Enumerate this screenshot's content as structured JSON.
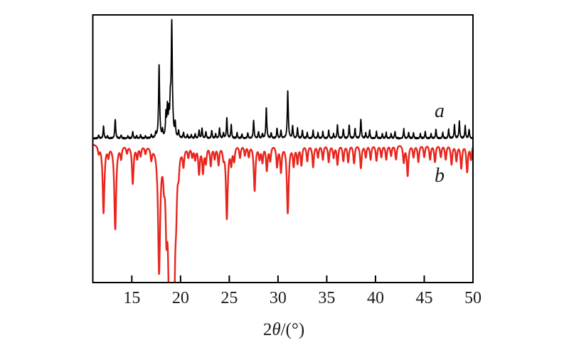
{
  "chart_data": {
    "type": "line",
    "title": "",
    "xlabel": "2θ/(°)",
    "xlabel_parts": {
      "prefix": "2",
      "symbol": "θ",
      "suffix": "/(°)"
    },
    "xlim": [
      11,
      50
    ],
    "x_ticks": [
      15,
      20,
      25,
      30,
      35,
      40,
      45,
      50
    ],
    "grid": false,
    "background": "#ffffff",
    "frame_color": "#000000",
    "legend_position": "inside-right",
    "series": [
      {
        "name": "experimental-pattern",
        "label": "a",
        "color": "#000000",
        "direction": "up",
        "baseline_frac": 0.464,
        "max_amplitude_frac": 0.427,
        "peak_width_deg": 0.05,
        "line_width": 1.8,
        "noise": 0.9,
        "peaks": [
          [
            11.6,
            3
          ],
          [
            12.1,
            11
          ],
          [
            12.5,
            2
          ],
          [
            13.3,
            17
          ],
          [
            13.9,
            3
          ],
          [
            14.6,
            2
          ],
          [
            15.1,
            6
          ],
          [
            15.5,
            2
          ],
          [
            15.9,
            3
          ],
          [
            16.4,
            2
          ],
          [
            17.0,
            3
          ],
          [
            17.45,
            4
          ],
          [
            17.8,
            64
          ],
          [
            18.15,
            6
          ],
          [
            18.5,
            20
          ],
          [
            18.65,
            24
          ],
          [
            18.8,
            19
          ],
          [
            18.95,
            25
          ],
          [
            19.1,
            100
          ],
          [
            19.45,
            12
          ],
          [
            19.8,
            6
          ],
          [
            20.3,
            5
          ],
          [
            20.7,
            3
          ],
          [
            21.1,
            3
          ],
          [
            21.5,
            4
          ],
          [
            21.9,
            7
          ],
          [
            22.2,
            9
          ],
          [
            22.6,
            6
          ],
          [
            23.2,
            7
          ],
          [
            23.6,
            4
          ],
          [
            24.0,
            9
          ],
          [
            24.4,
            5
          ],
          [
            24.75,
            18
          ],
          [
            25.2,
            12
          ],
          [
            25.8,
            5
          ],
          [
            26.3,
            4
          ],
          [
            26.9,
            5
          ],
          [
            27.5,
            16
          ],
          [
            28.0,
            6
          ],
          [
            28.4,
            4
          ],
          [
            28.8,
            27
          ],
          [
            29.3,
            5
          ],
          [
            29.9,
            9
          ],
          [
            30.3,
            7
          ],
          [
            31.0,
            42
          ],
          [
            31.5,
            11
          ],
          [
            32.0,
            9
          ],
          [
            32.5,
            7
          ],
          [
            33.0,
            5
          ],
          [
            33.6,
            7
          ],
          [
            34.1,
            5
          ],
          [
            34.6,
            6
          ],
          [
            35.2,
            7
          ],
          [
            35.7,
            4
          ],
          [
            36.1,
            12
          ],
          [
            36.7,
            8
          ],
          [
            37.3,
            12
          ],
          [
            37.9,
            9
          ],
          [
            38.5,
            17
          ],
          [
            39.0,
            5
          ],
          [
            39.4,
            7
          ],
          [
            40.1,
            6
          ],
          [
            40.7,
            4
          ],
          [
            41.1,
            5
          ],
          [
            41.6,
            4
          ],
          [
            42.0,
            6
          ],
          [
            42.9,
            8
          ],
          [
            43.4,
            5
          ],
          [
            43.9,
            5
          ],
          [
            44.6,
            4
          ],
          [
            45.1,
            6
          ],
          [
            45.7,
            4
          ],
          [
            46.2,
            8
          ],
          [
            46.9,
            5
          ],
          [
            47.5,
            8
          ],
          [
            48.1,
            12
          ],
          [
            48.6,
            15
          ],
          [
            49.2,
            11
          ],
          [
            49.6,
            8
          ]
        ]
      },
      {
        "name": "simulated-pattern",
        "label": "b",
        "color": "#e8251d",
        "direction": "down",
        "baseline_frac": 0.48,
        "max_amplitude_frac": 0.464,
        "peak_width_deg": 0.09,
        "line_width": 2.4,
        "noise": 0,
        "peaks": [
          [
            11.6,
            6
          ],
          [
            12.1,
            55
          ],
          [
            12.6,
            8
          ],
          [
            13.3,
            68
          ],
          [
            13.9,
            10
          ],
          [
            14.5,
            6
          ],
          [
            15.1,
            31
          ],
          [
            15.55,
            10
          ],
          [
            15.9,
            8
          ],
          [
            16.4,
            6
          ],
          [
            17.0,
            10
          ],
          [
            17.8,
            100
          ],
          [
            18.3,
            18
          ],
          [
            18.55,
            55
          ],
          [
            18.8,
            80
          ],
          [
            19.0,
            75
          ],
          [
            19.2,
            89
          ],
          [
            19.35,
            85
          ],
          [
            19.55,
            30
          ],
          [
            19.8,
            13
          ],
          [
            20.3,
            14
          ],
          [
            20.8,
            8
          ],
          [
            21.2,
            8
          ],
          [
            21.5,
            10
          ],
          [
            21.9,
            22
          ],
          [
            22.3,
            21
          ],
          [
            22.6,
            13
          ],
          [
            23.1,
            16
          ],
          [
            23.5,
            10
          ],
          [
            23.9,
            15
          ],
          [
            24.4,
            8
          ],
          [
            24.75,
            59
          ],
          [
            25.2,
            14
          ],
          [
            25.5,
            12
          ],
          [
            26.1,
            10
          ],
          [
            26.6,
            8
          ],
          [
            27.0,
            9
          ],
          [
            27.6,
            37
          ],
          [
            28.1,
            10
          ],
          [
            28.4,
            13
          ],
          [
            28.85,
            20
          ],
          [
            29.2,
            12
          ],
          [
            29.9,
            17
          ],
          [
            30.3,
            21
          ],
          [
            31.0,
            55
          ],
          [
            31.6,
            16
          ],
          [
            32.0,
            14
          ],
          [
            32.4,
            16
          ],
          [
            33.0,
            13
          ],
          [
            33.6,
            18
          ],
          [
            34.1,
            10
          ],
          [
            34.6,
            12
          ],
          [
            35.2,
            14
          ],
          [
            35.7,
            10
          ],
          [
            36.1,
            16
          ],
          [
            36.7,
            13
          ],
          [
            37.2,
            14
          ],
          [
            37.8,
            15
          ],
          [
            38.5,
            19
          ],
          [
            39.0,
            10
          ],
          [
            39.5,
            12
          ],
          [
            40.1,
            13
          ],
          [
            40.6,
            10
          ],
          [
            41.1,
            12
          ],
          [
            41.6,
            9
          ],
          [
            42.1,
            12
          ],
          [
            42.9,
            14
          ],
          [
            43.3,
            25
          ],
          [
            43.9,
            10
          ],
          [
            44.4,
            14
          ],
          [
            45.0,
            10
          ],
          [
            45.6,
            12
          ],
          [
            46.1,
            14
          ],
          [
            46.7,
            10
          ],
          [
            47.2,
            12
          ],
          [
            47.8,
            16
          ],
          [
            48.3,
            13
          ],
          [
            48.8,
            19
          ],
          [
            49.4,
            22
          ],
          [
            49.8,
            12
          ]
        ]
      }
    ]
  }
}
